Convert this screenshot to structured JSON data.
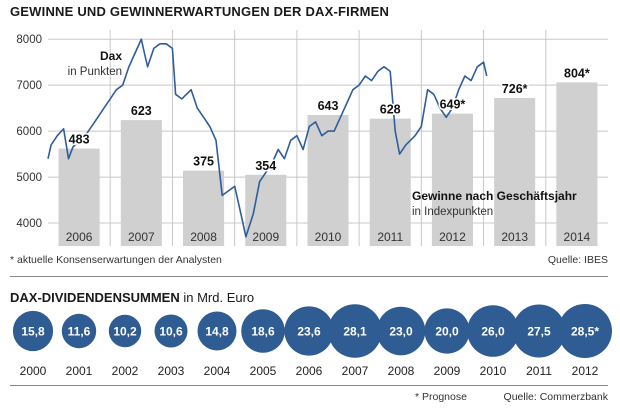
{
  "chart_data": [
    {
      "type": "bar",
      "title": "GEWINNE UND GEWINNERWARTUNGEN DER DAX-FIRMEN",
      "ylim": [
        3500,
        8200
      ],
      "yticks": [
        4000,
        5000,
        6000,
        7000,
        8000
      ],
      "categories": [
        "2006",
        "2007",
        "2008",
        "2009",
        "2010",
        "2011",
        "2012",
        "2013",
        "2014"
      ],
      "series": [
        {
          "name": "Gewinne nach Geschäftsjahr in Indexpunkten",
          "values": [
            5620,
            6240,
            5140,
            5050,
            6350,
            6270,
            6380,
            6720,
            7060
          ],
          "labels": [
            "483",
            "623",
            "375",
            "354",
            "643",
            "628",
            "649*",
            "726*",
            "804*"
          ]
        },
        {
          "name": "Dax in Punkten",
          "type": "line",
          "x": [
            2006.0,
            2006.05,
            2006.15,
            2006.25,
            2006.33,
            2006.4,
            2006.5,
            2006.6,
            2006.75,
            2006.9,
            2007.0,
            2007.1,
            2007.2,
            2007.3,
            2007.4,
            2007.5,
            2007.55,
            2007.6,
            2007.7,
            2007.8,
            2007.9,
            2008.0,
            2008.05,
            2008.15,
            2008.3,
            2008.4,
            2008.5,
            2008.6,
            2008.7,
            2008.8,
            2008.9,
            2009.0,
            2009.1,
            2009.18,
            2009.3,
            2009.4,
            2009.5,
            2009.6,
            2009.7,
            2009.8,
            2009.9,
            2010.0,
            2010.1,
            2010.2,
            2010.3,
            2010.4,
            2010.5,
            2010.6,
            2010.7,
            2010.8,
            2010.9,
            2011.0,
            2011.1,
            2011.2,
            2011.3,
            2011.4,
            2011.5,
            2011.58,
            2011.65,
            2011.75,
            2011.9,
            2012.0,
            2012.1,
            2012.2,
            2012.3,
            2012.4,
            2012.5,
            2012.6,
            2012.7,
            2012.8,
            2012.9,
            2013.0,
            2013.05
          ],
          "values": [
            5400,
            5700,
            5900,
            6050,
            5400,
            5650,
            5800,
            5900,
            6200,
            6500,
            6700,
            6900,
            7000,
            7400,
            7700,
            8000,
            7700,
            7400,
            7800,
            7900,
            7900,
            7800,
            6800,
            6700,
            6900,
            6500,
            6300,
            6100,
            5800,
            4600,
            4700,
            4800,
            4200,
            3700,
            4200,
            4900,
            5100,
            5300,
            5600,
            5400,
            5800,
            5900,
            5600,
            6100,
            6200,
            5900,
            6000,
            6000,
            6300,
            6600,
            6900,
            7000,
            7200,
            7100,
            7300,
            7400,
            7300,
            6000,
            5500,
            5700,
            5900,
            6100,
            6900,
            6800,
            6500,
            6300,
            6500,
            6900,
            7200,
            7100,
            7400,
            7500,
            7200
          ]
        }
      ],
      "annotations": {
        "dax_label_bold": "Dax",
        "dax_label_sub": "in Punkten",
        "profit_label_bold": "Gewinne nach Geschäftsjahr",
        "profit_label_sub": "in Indexpunkten"
      }
    },
    {
      "type": "bubble",
      "title": "DAX-DIVIDENDENSUMMEN",
      "unit": "in Mrd. Euro",
      "categories": [
        "2000",
        "2001",
        "2002",
        "2003",
        "2004",
        "2005",
        "2006",
        "2007",
        "2008",
        "2009",
        "2010",
        "2011",
        "2012"
      ],
      "values": [
        15.8,
        11.6,
        10.2,
        10.6,
        14.8,
        18.6,
        23.6,
        28.1,
        23.0,
        20.0,
        26.0,
        27.5,
        28.5
      ],
      "labels": [
        "15,8",
        "11,6",
        "10,2",
        "10,6",
        "14,8",
        "18,6",
        "23,6",
        "28,1",
        "23,0",
        "20,0",
        "26,0",
        "27,5",
        "28,5*"
      ]
    }
  ],
  "colors": {
    "bar": "#d0d0d0",
    "line": "#2f5d9c",
    "bubble": "#2f5c92",
    "grid": "#c8c8c8"
  },
  "notes": {
    "top_footnote": "* aktuelle Konsenserwartungen der Analysten",
    "top_source": "Quelle: IBES",
    "bottom_title_bold": "DAX-DIVIDENDENSUMMEN",
    "bottom_title_unit": " in Mrd. Euro",
    "bottom_footnote": "* Prognose",
    "bottom_source": "Quelle: Commerzbank"
  }
}
